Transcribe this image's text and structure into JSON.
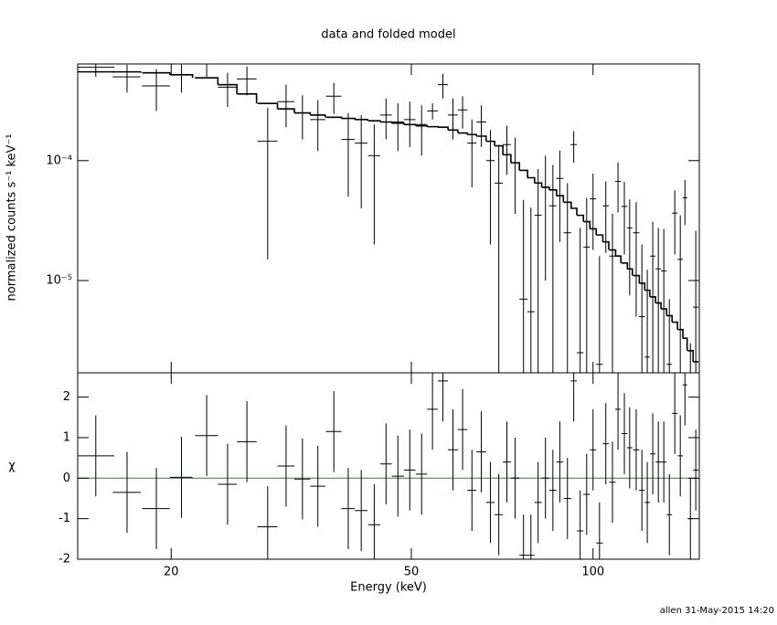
{
  "chart_data": [
    {
      "type": "spectrum",
      "title": "data and folded model",
      "ylabel": "normalized counts s⁻¹ keV⁻¹",
      "x": [
        15.0,
        16.9,
        18.9,
        20.8,
        22.9,
        24.8,
        26.7,
        28.9,
        31.0,
        33.0,
        35.0,
        37.2,
        39.3,
        41.3,
        43.4,
        45.4,
        47.5,
        49.7,
        52.0,
        54.2,
        56.4,
        58.6,
        60.8,
        63.0,
        65.3,
        67.6,
        69.8,
        72.0,
        74.3,
        76.7,
        78.9,
        81.1,
        83.4,
        85.8,
        88.1,
        90.7,
        92.9,
        95.2,
        97.6,
        100,
        102.5,
        105,
        107.7,
        110,
        112.7,
        115,
        117.9,
        120.5,
        123,
        125.6,
        128.3,
        131,
        133.8,
        136.6,
        139.5,
        142,
        145,
        148
      ],
      "xerr": [
        1.1,
        0.9,
        1.0,
        0.9,
        1.0,
        0.9,
        1.0,
        1.1,
        1.0,
        1.0,
        1.0,
        1.1,
        1.0,
        1.0,
        1.0,
        1.0,
        1.1,
        1.1,
        1.1,
        1.1,
        1.1,
        1.1,
        1.1,
        1.1,
        1.2,
        1.1,
        1.1,
        1.1,
        1.2,
        1.2,
        1.1,
        1.1,
        1.2,
        1.2,
        1.2,
        1.3,
        1.1,
        1.2,
        1.2,
        1.2,
        1.3,
        1.2,
        1.3,
        1.2,
        1.3,
        1.2,
        1.4,
        1.3,
        1.2,
        1.3,
        1.3,
        1.4,
        1.4,
        1.4,
        1.4,
        1.2,
        1.5,
        1.5
      ],
      "data": {
        "color": "#000000",
        "values": [
          0.0006,
          0.0005,
          0.00042,
          0.00052,
          0.00065,
          0.00041,
          0.00048,
          0.000145,
          0.00031,
          0.00025,
          0.00022,
          0.000345,
          0.00015,
          0.00014,
          0.00011,
          0.00024,
          0.00021,
          0.00022,
          0.0002,
          0.00026,
          0.00043,
          0.00024,
          0.000265,
          0.00014,
          0.00021,
          0.0001,
          6.5e-05,
          0.000136,
          9.6e-05,
          7e-06,
          5.5e-06,
          3.5e-05,
          6e-05,
          4.2e-05,
          7.1e-05,
          2.5e-05,
          0.000136,
          2.5e-06,
          1.9e-05,
          4.8e-05,
          2e-06,
          4.2e-05,
          1.6e-05,
          6.7e-05,
          4.15e-05,
          2.75e-05,
          2.5e-05,
          5e-06,
          2.3e-06,
          1.6e-05,
          1.25e-05,
          1.2e-05,
          2e-06,
          3.65e-05,
          1.5e-05,
          4.9e-05,
          1e-06,
          6e-06
        ],
        "errors": [
          0.0001,
          0.00013,
          0.00016,
          0.00015,
          0.00015,
          0.00013,
          0.00013,
          0.00013,
          0.00012,
          0.0001,
          0.0001,
          0.0001,
          0.0001,
          0.0001,
          9e-05,
          9e-05,
          9e-05,
          9e-05,
          9e-05,
          4e-05,
          0.0001,
          9e-05,
          8e-05,
          8e-05,
          8e-05,
          8e-05,
          7e-05,
          6e-05,
          6e-05,
          4e-05,
          3.5e-05,
          5e-05,
          5e-05,
          5e-05,
          5e-05,
          4e-05,
          4e-05,
          2.5e-05,
          3e-05,
          3e-05,
          1.4e-05,
          2.5e-05,
          2e-05,
          3e-05,
          2.5e-05,
          2e-05,
          2e-05,
          1.5e-05,
          1e-05,
          1.5e-05,
          1.5e-05,
          1.5e-05,
          5e-06,
          2e-05,
          2e-05,
          2e-05,
          2e-06,
          2e-05
        ]
      },
      "model": {
        "color": "#000000",
        "values": [
          0.00055,
          0.00055,
          0.00054,
          0.00052,
          0.00049,
          0.00043,
          0.00036,
          0.0003,
          0.00027,
          0.00025,
          0.00024,
          0.00023,
          0.000225,
          0.00022,
          0.000215,
          0.00021,
          0.000205,
          0.0002,
          0.000195,
          0.000192,
          0.00019,
          0.00018,
          0.00017,
          0.000165,
          0.00016,
          0.000145,
          0.000133,
          0.000112,
          9.6e-05,
          8.3e-05,
          7.2e-05,
          6.5e-05,
          6e-05,
          5.7e-05,
          5.1e-05,
          4.5e-05,
          4e-05,
          3.5e-05,
          3.1e-05,
          2.7e-05,
          2.4e-05,
          2.1e-05,
          1.8e-05,
          1.6e-05,
          1.4e-05,
          1.25e-05,
          1.1e-05,
          9.5e-06,
          8.3e-06,
          7.3e-06,
          6.5e-06,
          5.8e-06,
          5.1e-06,
          4.5e-06,
          3.9e-06,
          3.3e-06,
          2.6e-06,
          2.1e-06
        ]
      },
      "xlim": [
        14,
        150
      ],
      "log_x": true,
      "ylim": [
        1.7e-06,
        0.00064
      ],
      "log_y": true,
      "yticks": [
        {
          "value": 1e-05,
          "label": "10⁻⁵"
        },
        {
          "value": 0.0001,
          "label": "10⁻⁴"
        }
      ]
    },
    {
      "type": "residuals",
      "ylabel": "χ",
      "xlabel": "Energy (keV)",
      "values": [
        0.55,
        -0.35,
        -0.75,
        0.02,
        1.05,
        -0.15,
        0.9,
        -1.2,
        0.3,
        -0.02,
        -0.2,
        1.15,
        -0.75,
        -0.8,
        -1.15,
        0.35,
        0.05,
        0.2,
        0.1,
        1.7,
        2.4,
        0.7,
        1.2,
        -0.3,
        0.65,
        -0.6,
        -0.9,
        0.4,
        0,
        -1.9,
        -1.9,
        -0.6,
        0,
        -0.3,
        0.4,
        -0.5,
        2.4,
        -1.3,
        -0.4,
        0.7,
        -1.6,
        0.85,
        -0.1,
        1.7,
        1.1,
        0.75,
        0.7,
        -0.3,
        -0.6,
        0.6,
        0.4,
        0.4,
        -0.9,
        1.6,
        0.55,
        2.3,
        -1.0,
        0.2
      ],
      "errors": [
        1,
        1,
        1,
        1,
        1,
        1,
        1,
        1,
        1,
        1,
        1,
        1,
        1,
        1,
        1,
        1,
        1,
        1,
        1,
        1,
        1,
        1,
        1,
        1,
        1,
        1,
        1,
        1,
        1,
        1,
        1,
        1,
        1,
        1,
        1,
        1,
        1,
        1,
        1,
        1,
        1,
        1,
        1,
        1,
        1,
        1,
        1,
        1,
        1,
        1,
        1,
        1,
        1,
        1,
        1,
        1,
        1,
        1
      ],
      "ylim": [
        -2,
        2.6
      ],
      "yticks": [
        -2,
        -1,
        0,
        1,
        2
      ],
      "xticks": [
        20,
        50,
        100
      ],
      "zero_line_color": "#00c000"
    }
  ],
  "footer": "allen 31-May-2015 14:20"
}
